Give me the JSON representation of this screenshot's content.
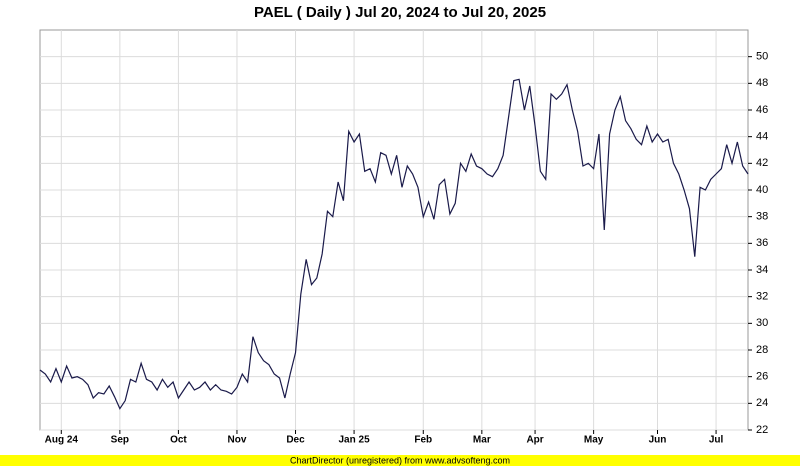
{
  "chart_data": {
    "type": "line",
    "title": "PAEL ( Daily ) Jul 20, 2024 to Jul 20, 2025",
    "footer": "ChartDirector (unregistered) from www.advsofteng.com",
    "categories": [
      null,
      null,
      null,
      null,
      "Aug 24",
      null,
      null,
      null,
      null,
      null,
      null,
      null,
      null,
      null,
      null,
      "Sep",
      null,
      null,
      null,
      null,
      null,
      null,
      null,
      null,
      null,
      null,
      "Oct",
      null,
      null,
      null,
      null,
      null,
      null,
      null,
      null,
      null,
      null,
      "Nov",
      null,
      null,
      null,
      null,
      null,
      null,
      null,
      null,
      null,
      null,
      "Dec",
      null,
      null,
      null,
      null,
      null,
      null,
      null,
      null,
      null,
      null,
      "Jan 25",
      null,
      null,
      null,
      null,
      null,
      null,
      null,
      null,
      null,
      null,
      null,
      null,
      "Feb",
      null,
      null,
      null,
      null,
      null,
      null,
      null,
      null,
      null,
      null,
      "Mar",
      null,
      null,
      null,
      null,
      null,
      null,
      null,
      null,
      null,
      "Apr",
      null,
      null,
      null,
      null,
      null,
      null,
      null,
      null,
      null,
      null,
      "May",
      null,
      null,
      null,
      null,
      null,
      null,
      null,
      null,
      null,
      null,
      null,
      "Jun",
      null,
      null,
      null,
      null,
      null,
      null,
      null,
      null,
      null,
      null,
      "Jul",
      null,
      null,
      null,
      null,
      null,
      null
    ],
    "values": [
      26.5,
      26.2,
      25.6,
      26.6,
      25.6,
      26.8,
      25.9,
      26.0,
      25.8,
      25.4,
      24.4,
      24.8,
      24.7,
      25.3,
      24.5,
      23.6,
      24.2,
      25.8,
      25.6,
      27.0,
      25.8,
      25.6,
      25.0,
      25.8,
      25.2,
      25.6,
      24.4,
      25.0,
      25.6,
      25.0,
      25.2,
      25.6,
      25.0,
      25.4,
      25.0,
      24.9,
      24.7,
      25.2,
      26.2,
      25.6,
      29.0,
      27.8,
      27.2,
      26.9,
      26.2,
      25.9,
      24.4,
      26.2,
      27.8,
      32.2,
      34.8,
      32.9,
      33.4,
      35.2,
      38.4,
      38.0,
      40.6,
      39.2,
      44.4,
      43.6,
      44.2,
      41.4,
      41.6,
      40.6,
      42.8,
      42.6,
      41.2,
      42.6,
      40.2,
      41.8,
      41.2,
      40.2,
      38.0,
      39.1,
      37.8,
      40.4,
      40.8,
      38.2,
      39.0,
      42.0,
      41.4,
      42.7,
      41.8,
      41.6,
      41.2,
      41.0,
      41.6,
      42.6,
      45.4,
      48.2,
      48.3,
      46.0,
      47.8,
      44.8,
      41.4,
      40.8,
      47.2,
      46.8,
      47.2,
      47.9,
      46.0,
      44.4,
      41.8,
      42.0,
      41.6,
      44.2,
      37.0,
      44.2,
      46.0,
      47.0,
      45.2,
      44.6,
      43.8,
      43.4,
      44.8,
      43.6,
      44.2,
      43.6,
      43.8,
      42.0,
      41.2,
      40.0,
      38.6,
      35.0,
      40.2,
      40.0,
      40.8,
      41.2,
      41.6,
      43.4,
      42.0,
      43.6,
      41.8,
      41.2
    ],
    "color": "#1a1a4a",
    "ylim": [
      22,
      52
    ],
    "yticks": [
      22,
      24,
      26,
      28,
      30,
      32,
      34,
      36,
      38,
      40,
      42,
      44,
      46,
      48,
      50
    ],
    "grid": true
  }
}
